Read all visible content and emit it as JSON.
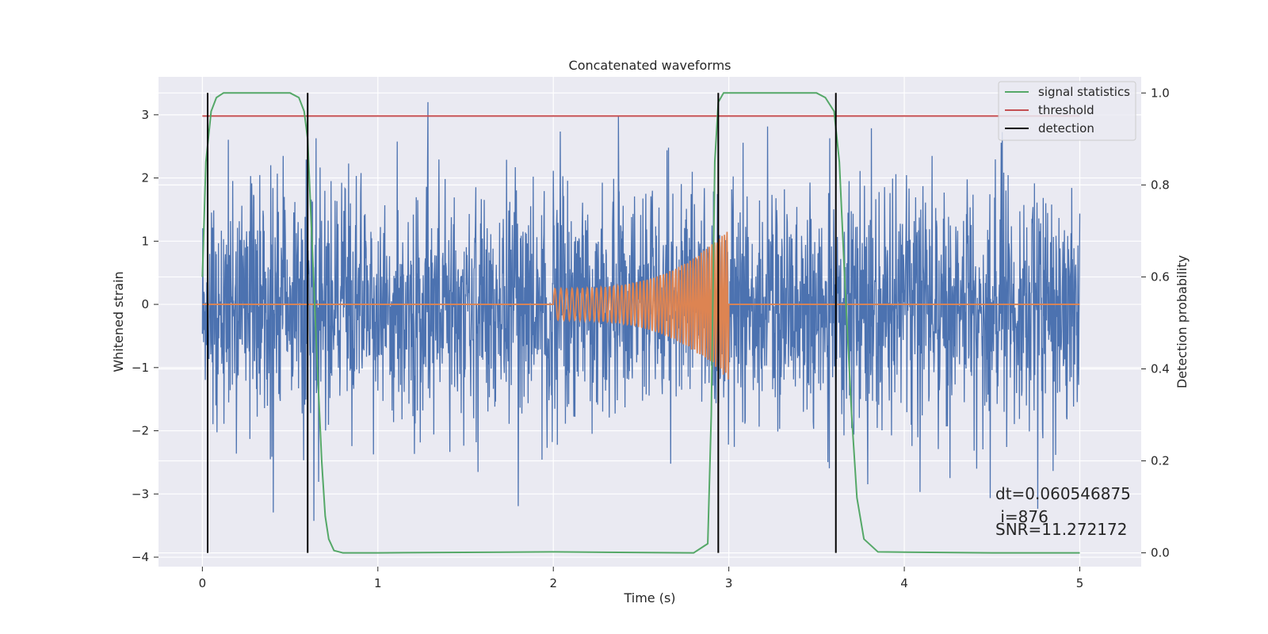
{
  "chart_data": {
    "type": "line",
    "title": "Concatenated waveforms",
    "xlabel": "Time (s)",
    "ylabel": "Whitened strain",
    "y2label": "Detection probability",
    "xlim": [
      -0.25,
      5.35
    ],
    "ylim": [
      -4.15,
      3.6
    ],
    "y2lim": [
      -0.03,
      1.035
    ],
    "x_ticks": [
      0,
      1,
      2,
      3,
      4,
      5
    ],
    "y_ticks": [
      -4,
      -3,
      -2,
      -1,
      0,
      1,
      2,
      3
    ],
    "y2_ticks": [
      0.0,
      0.2,
      0.4,
      0.6,
      0.8,
      1.0
    ],
    "x_tick_labels": [
      "0",
      "1",
      "2",
      "3",
      "4",
      "5"
    ],
    "y_tick_labels": [
      "−4",
      "−3",
      "−2",
      "−1",
      "0",
      "1",
      "2",
      "3"
    ],
    "y2_tick_labels": [
      "0.0",
      "0.2",
      "0.4",
      "0.6",
      "0.8",
      "1.0"
    ],
    "grid": true,
    "legend_position": "top-right",
    "legend": [
      {
        "label": "signal statistics",
        "color": "#55a868"
      },
      {
        "label": "threshold",
        "color": "#c44e52"
      },
      {
        "label": "detection",
        "color": "#000000"
      }
    ],
    "series": [
      {
        "key": "strain",
        "color": "#4c72b0",
        "x_range": [
          0,
          5
        ],
        "description": "whitened strain noise, amplitude mostly within about ±2.5, peaks near ±3.2"
      },
      {
        "key": "waveform",
        "color": "#dd8452",
        "x_range": [
          0,
          5
        ],
        "chirp_start": 2.0,
        "chirp_end": 3.0,
        "start_amplitude": 0.25,
        "end_amplitude": 1.2
      },
      {
        "key": "signal_statistics",
        "name": "signal statistics",
        "axis": "right",
        "color": "#55a868",
        "x": [
          0.0,
          0.02,
          0.05,
          0.08,
          0.12,
          0.3,
          0.5,
          0.55,
          0.58,
          0.6,
          0.62,
          0.65,
          0.68,
          0.7,
          0.72,
          0.75,
          0.8,
          1.0,
          2.0,
          2.8,
          2.88,
          2.9,
          2.92,
          2.94,
          2.97,
          3.0,
          3.2,
          3.5,
          3.55,
          3.6,
          3.63,
          3.66,
          3.7,
          3.73,
          3.77,
          3.85,
          4.5,
          5.0
        ],
        "y": [
          0.6,
          0.85,
          0.96,
          0.99,
          1.0,
          1.0,
          1.0,
          0.99,
          0.96,
          0.9,
          0.72,
          0.45,
          0.2,
          0.08,
          0.03,
          0.005,
          0.0,
          0.0,
          0.002,
          0.0,
          0.02,
          0.3,
          0.85,
          0.98,
          1.0,
          1.0,
          1.0,
          1.0,
          0.99,
          0.96,
          0.85,
          0.6,
          0.3,
          0.12,
          0.03,
          0.002,
          0.0,
          0.0
        ]
      },
      {
        "key": "threshold",
        "name": "threshold",
        "axis": "right",
        "color": "#c44e52",
        "x": [
          0,
          5
        ],
        "y": [
          0.95,
          0.95
        ]
      }
    ],
    "detections": [
      0.03,
      0.6,
      2.94,
      3.61
    ],
    "annotations": {
      "dt": "dt=0.060546875",
      "i": " i=876",
      "snr": "SNR=11.272172"
    }
  }
}
